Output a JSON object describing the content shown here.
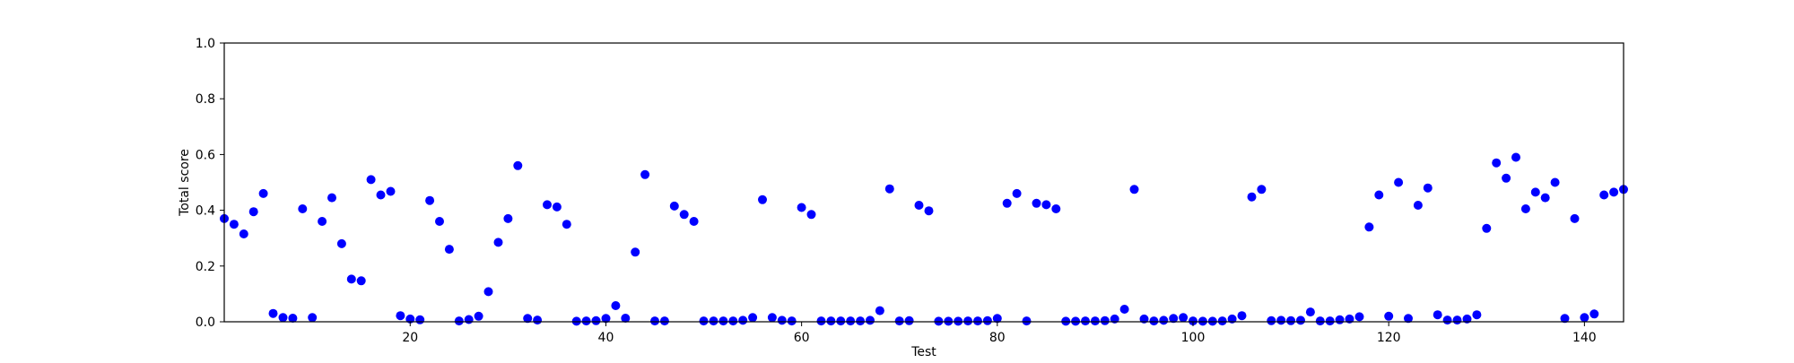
{
  "chart_data": {
    "type": "scatter",
    "title": "",
    "xlabel": "Test",
    "ylabel": "Total score",
    "xlim": [
      1,
      144
    ],
    "ylim": [
      0.0,
      1.0
    ],
    "xticks": [
      20,
      40,
      60,
      80,
      100,
      120,
      140
    ],
    "yticks": [
      "0.0",
      "0.2",
      "0.4",
      "0.6",
      "0.8",
      "1.0"
    ],
    "grid": false,
    "legend": "none",
    "marker_color": "#0000ff",
    "x": [
      1,
      2,
      3,
      4,
      5,
      6,
      7,
      8,
      9,
      10,
      11,
      12,
      13,
      14,
      15,
      16,
      17,
      18,
      19,
      20,
      21,
      22,
      23,
      24,
      25,
      26,
      27,
      28,
      29,
      30,
      31,
      32,
      33,
      34,
      35,
      36,
      37,
      38,
      39,
      40,
      41,
      42,
      43,
      44,
      45,
      46,
      47,
      48,
      49,
      50,
      51,
      52,
      53,
      54,
      55,
      56,
      57,
      58,
      59,
      60,
      61,
      62,
      63,
      64,
      65,
      66,
      67,
      68,
      69,
      70,
      71,
      72,
      73,
      74,
      75,
      76,
      77,
      78,
      79,
      80,
      81,
      82,
      83,
      84,
      85,
      86,
      87,
      88,
      89,
      90,
      91,
      92,
      93,
      94,
      95,
      96,
      97,
      98,
      99,
      100,
      101,
      102,
      103,
      104,
      105,
      106,
      107,
      108,
      109,
      110,
      111,
      112,
      113,
      114,
      115,
      116,
      117,
      118,
      119,
      120,
      121,
      122,
      123,
      124,
      125,
      126,
      127,
      128,
      129,
      130,
      131,
      132,
      133,
      134,
      135,
      136,
      137,
      138,
      139,
      140,
      141,
      142,
      143,
      144
    ],
    "y": [
      0.37,
      0.35,
      0.315,
      0.395,
      0.46,
      0.03,
      0.015,
      0.013,
      0.405,
      0.015,
      0.36,
      0.445,
      0.28,
      0.153,
      0.147,
      0.51,
      0.455,
      0.468,
      0.022,
      0.01,
      0.007,
      0.435,
      0.36,
      0.26,
      0.003,
      0.008,
      0.02,
      0.108,
      0.285,
      0.37,
      0.56,
      0.012,
      0.006,
      0.42,
      0.412,
      0.35,
      0.002,
      0.003,
      0.004,
      0.012,
      0.058,
      0.013,
      0.25,
      0.528,
      0.003,
      0.003,
      0.415,
      0.385,
      0.36,
      0.003,
      0.003,
      0.003,
      0.003,
      0.005,
      0.015,
      0.438,
      0.015,
      0.005,
      0.003,
      0.41,
      0.385,
      0.003,
      0.003,
      0.003,
      0.003,
      0.003,
      0.005,
      0.04,
      0.477,
      0.003,
      0.004,
      0.418,
      0.398,
      0.002,
      0.002,
      0.002,
      0.003,
      0.003,
      0.004,
      0.012,
      0.425,
      0.46,
      0.003,
      0.425,
      0.42,
      0.405,
      0.002,
      0.002,
      0.003,
      0.003,
      0.004,
      0.01,
      0.045,
      0.475,
      0.01,
      0.003,
      0.005,
      0.012,
      0.015,
      0.003,
      0.002,
      0.002,
      0.003,
      0.01,
      0.022,
      0.448,
      0.475,
      0.004,
      0.005,
      0.004,
      0.005,
      0.035,
      0.003,
      0.003,
      0.007,
      0.01,
      0.018,
      0.34,
      0.455,
      0.02,
      0.5,
      0.012,
      0.418,
      0.48,
      0.025,
      0.006,
      0.006,
      0.01,
      0.025,
      0.335,
      0.57,
      0.515,
      0.59,
      0.405,
      0.465,
      0.445,
      0.5,
      0.012,
      0.37,
      0.015,
      0.028,
      0.455,
      0.465,
      0.475
    ]
  }
}
